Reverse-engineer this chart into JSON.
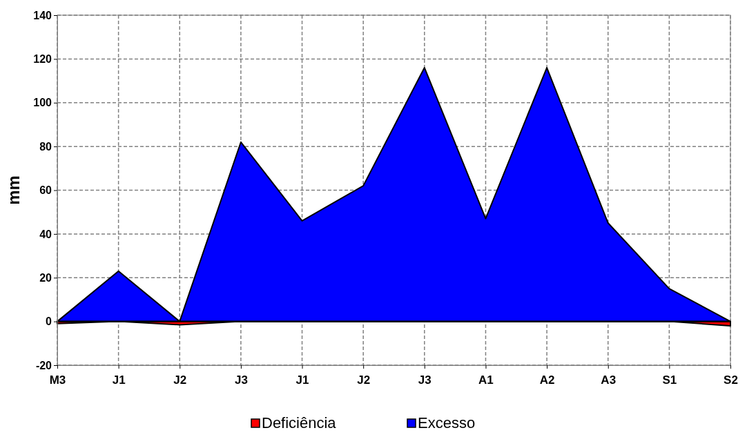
{
  "chart_data": {
    "type": "area",
    "ylabel": "mm",
    "categories": [
      "M3",
      "J1",
      "J2",
      "J3",
      "J1",
      "J2",
      "J3",
      "A1",
      "A2",
      "A3",
      "S1",
      "S2"
    ],
    "series": [
      {
        "name": "Deficiência",
        "color": "#ff0000",
        "values": [
          -1,
          0,
          -1.5,
          0,
          0,
          0,
          0,
          0,
          0,
          0,
          0,
          -2
        ]
      },
      {
        "name": "Excesso",
        "color": "#0000ff",
        "values": [
          0,
          23,
          0,
          82,
          46,
          62,
          116,
          47,
          116,
          45,
          15,
          0
        ]
      }
    ],
    "ylim": [
      -20,
      140
    ],
    "yticks": [
      -20,
      0,
      20,
      40,
      60,
      80,
      100,
      120,
      140
    ],
    "grid": true,
    "legend": "bottom"
  }
}
